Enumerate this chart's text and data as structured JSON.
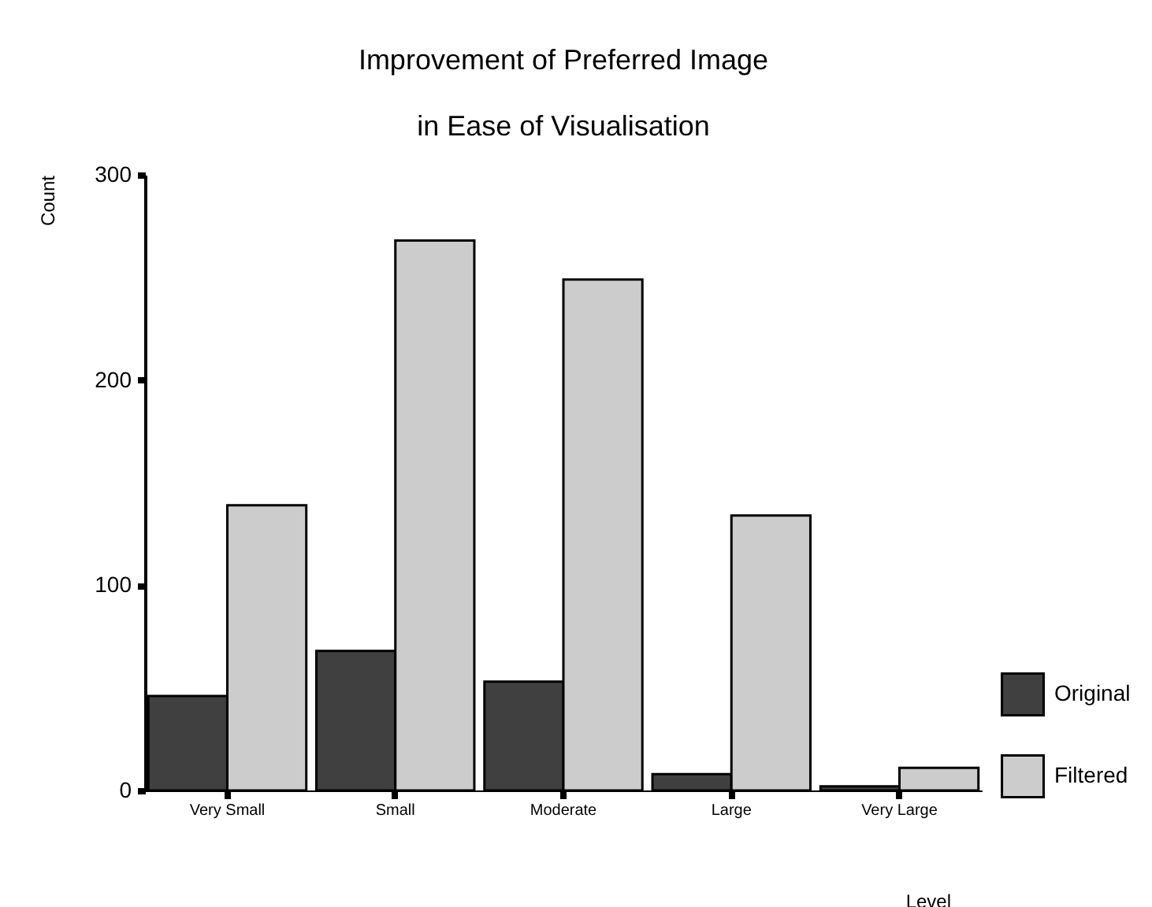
{
  "chart_data": {
    "type": "bar",
    "title": "Improvement of Preferred Image\nin Ease of Visualisation",
    "xlabel": "Level",
    "ylabel": "Count",
    "categories": [
      "Very Small",
      "Small",
      "Moderate",
      "Large",
      "Very Large"
    ],
    "series": [
      {
        "name": "Original",
        "color": "#404040",
        "values": [
          46,
          68,
          53,
          8,
          2
        ]
      },
      {
        "name": "Filtered",
        "color": "#cccccc",
        "values": [
          139,
          268,
          249,
          134,
          11
        ]
      }
    ],
    "ylim": [
      0,
      300
    ],
    "yticks": [
      0,
      100,
      200,
      300
    ],
    "grid": false,
    "legend": "bottom right"
  }
}
